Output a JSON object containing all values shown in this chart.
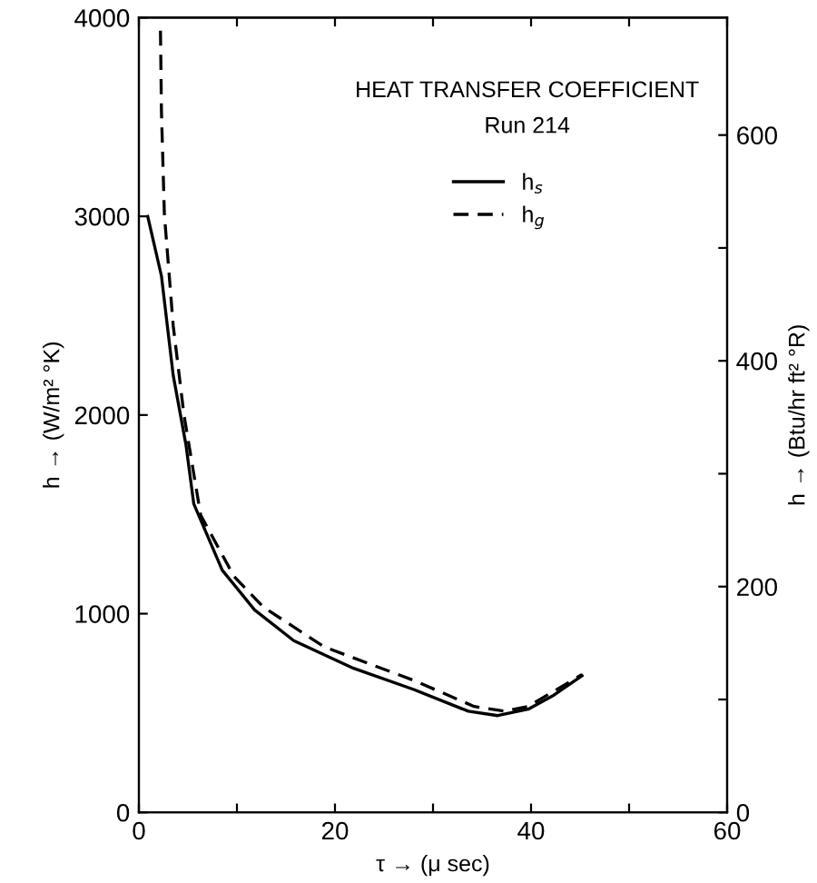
{
  "chart_data": {
    "type": "line",
    "title": "HEAT TRANSFER COEFFICIENT",
    "subtitle": "Run 214",
    "xlabel": "τ → (μ sec)",
    "ylabel": "h → (W/m² °K)",
    "y2label": "h → (Btu/hr ft² °R)",
    "series": [
      {
        "name": "h$_{s}$",
        "color": "#000000",
        "line_style": "solid",
        "x": [
          0.9,
          2.3,
          3.5,
          4.8,
          5.6,
          8.5,
          11.8,
          15.8,
          21.9,
          28.1,
          33.6,
          36.6,
          39.7,
          42.2,
          45.2
        ],
        "values": [
          3000,
          2700,
          2200,
          1850,
          1553,
          1219,
          1019,
          864,
          725,
          617,
          509,
          487,
          519,
          586,
          688
        ]
      },
      {
        "name": "h$_{g}$",
        "color": "#000000",
        "line_style": "dashed",
        "x": [
          2.2,
          2.3,
          2.6,
          3.5,
          4.6,
          6.3,
          9.7,
          12.7,
          18.9,
          28.1,
          34.2,
          37.3,
          39.7,
          45.2
        ],
        "values": [
          3935,
          3530,
          3010,
          2450,
          2000,
          1496,
          1188,
          1033,
          833,
          663,
          533,
          509,
          533,
          694
        ]
      }
    ],
    "xlim": [
      0,
      60
    ],
    "xticks": [
      0,
      {
        "value": 10,
        "label": null
      },
      20,
      {
        "value": 30,
        "label": null
      },
      40,
      {
        "value": 50,
        "label": null
      },
      60
    ],
    "ylim": [
      0,
      4000
    ],
    "yticks": [
      0,
      1000,
      2000,
      3000,
      4000
    ],
    "y2lim": [
      0,
      704
    ],
    "y2ticks": [
      0,
      {
        "value": 100,
        "label": null
      },
      200,
      {
        "value": 300,
        "label": null
      },
      400,
      {
        "value": 500,
        "label": null
      },
      600
    ],
    "grid": false,
    "legend": "top right",
    "marker": "none"
  }
}
